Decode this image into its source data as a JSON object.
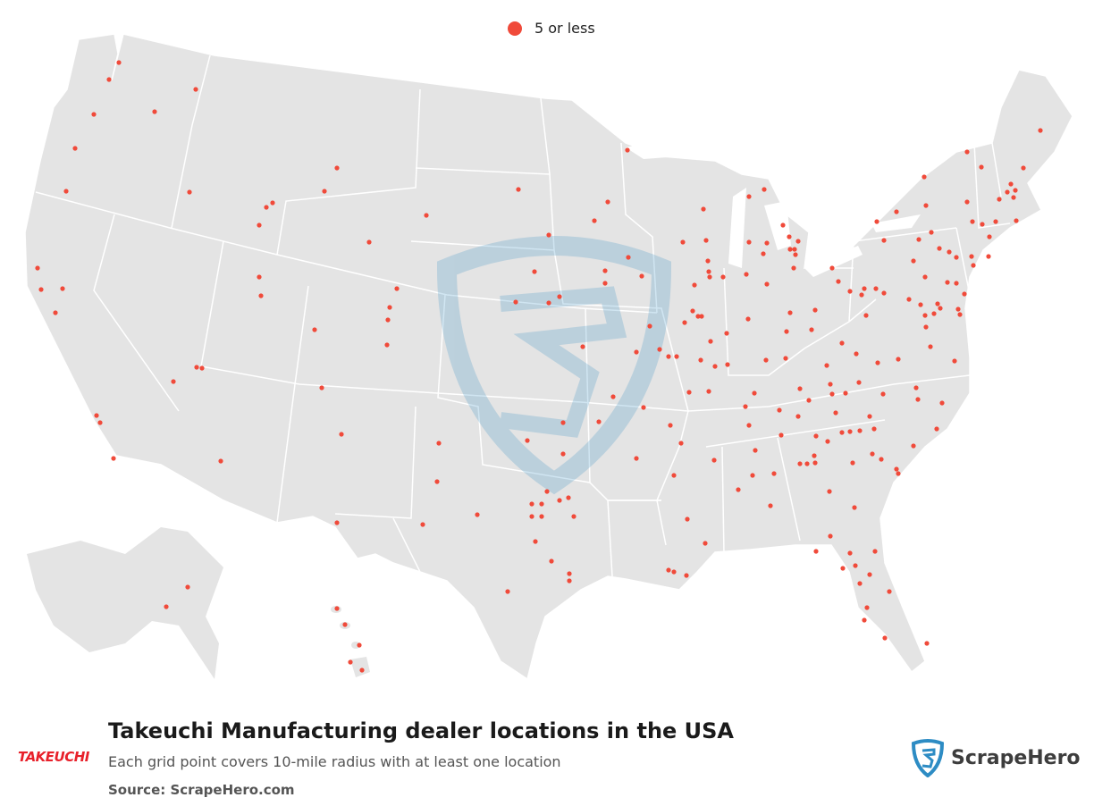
{
  "legend": {
    "label": "5 or less",
    "color": "#f04a3a"
  },
  "title": "Takeuchi Manufacturing dealer locations in the USA",
  "subtitle": "Each grid point covers 10-mile radius with at least one location",
  "source": "Source: ScrapeHero.com",
  "brand_left": "TAKEUCHI",
  "brand_right": "ScrapeHero",
  "colors": {
    "land": "#e4e4e4",
    "border": "#ffffff",
    "dot": "#f04a3a",
    "brand_red": "#e8202a",
    "shield_blue": "#2d8cc4"
  }
}
